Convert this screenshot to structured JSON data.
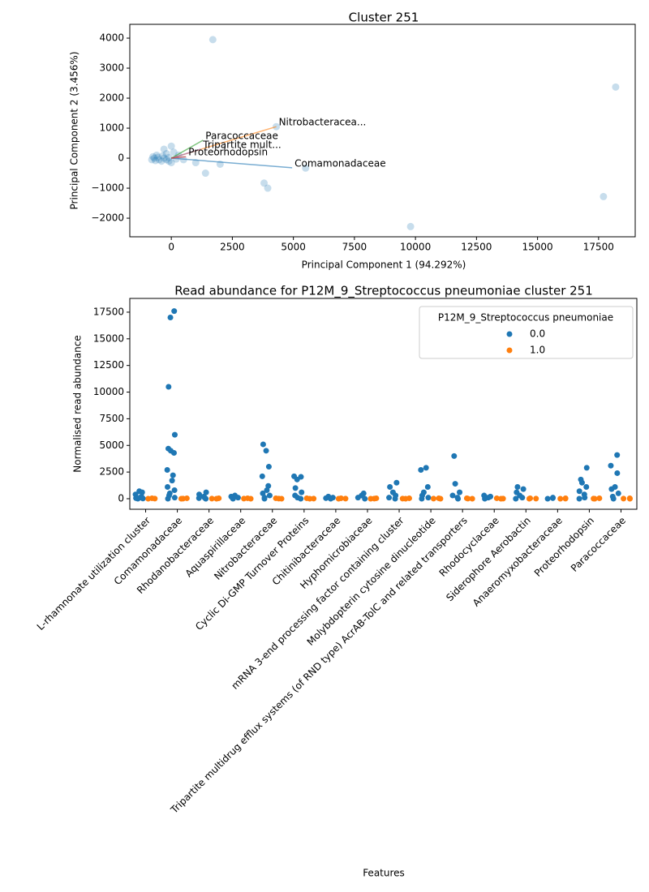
{
  "chart_data": [
    {
      "type": "scatter",
      "title": "Cluster 251",
      "x_label": "Principal Component 1 (94.292%)",
      "y_label": "Principal Component 2 (3.456%)",
      "color": "#1f77b4",
      "x": [
        1700,
        18200,
        17700,
        9800,
        3800,
        3950,
        5500,
        1400,
        2000,
        1000,
        500,
        -300,
        0,
        -600,
        -700,
        -800,
        -500,
        -400,
        -200,
        -100,
        0,
        -200,
        100,
        -300,
        4300,
        -650,
        -750,
        -550,
        -350,
        200,
        -100,
        300
      ],
      "values": [
        3950,
        2370,
        -1280,
        -2280,
        -830,
        -1000,
        -330,
        -500,
        -200,
        -150,
        -50,
        300,
        400,
        100,
        0,
        -50,
        -50,
        -100,
        -50,
        -100,
        -150,
        150,
        200,
        0,
        1050,
        -80,
        50,
        30,
        80,
        -30,
        20,
        100
      ],
      "arrows": [
        {
          "label": "Comamonadaceae",
          "color": "#1f77b4",
          "x": 4950,
          "y": -320
        },
        {
          "label": "Nitrobacteracea...",
          "color": "#ff7f0e",
          "x": 4300,
          "y": 1050
        },
        {
          "label": "Paracoccaceae",
          "color": "#2ca02c",
          "x": 1300,
          "y": 600
        },
        {
          "label": "Tripartite mult...",
          "color": "#9467bd",
          "x": 1200,
          "y": 300
        },
        {
          "label": "Proteorhodopsin",
          "color": "#d62728",
          "x": 600,
          "y": 50
        }
      ],
      "xlim": [
        -1700,
        19000
      ],
      "ylim": [
        -2620,
        4460
      ],
      "xticks": [
        0,
        2500,
        5000,
        7500,
        10000,
        12500,
        15000,
        17500
      ],
      "yticks": [
        {
          "value": -2000,
          "label": "−2000"
        },
        {
          "value": -1000,
          "label": "−1000"
        },
        0,
        1000,
        2000,
        3000,
        4000
      ]
    },
    {
      "type": "strip",
      "title": "Read abundance for P12M_9_Streptococcus pneumoniae cluster 251",
      "x_label": "Features",
      "y_label": "Normalised read abundance",
      "legend_title": "P12M_9_Streptococcus pneumoniae",
      "legend": "upper right",
      "categories": [
        "L-rhamnonate utilization cluster",
        "Comamonadaceae",
        "Rhodanobacteraceae",
        "Aquaspirillaceae",
        "Nitrobacteraceae",
        "Cyclic Di-GMP Turnover Proteins",
        "Chitinibacteraceae",
        "Hyphomicrobiaceae",
        "mRNA 3-end processing factor containing cluster",
        "Molybdopterin cytosine dinucleotide",
        "Tripartite multidrug efflux systems (of RND type) AcrAB-TolC and related transporters",
        "Rhodocyclaceae",
        "Siderophore Aerobactin",
        "Anaeromyxobacteraceae",
        "Proteorhodopsin",
        "Paracoccaceae"
      ],
      "series": [
        {
          "name": "0.0",
          "color": "#1f77b4",
          "values": [
            [
              700,
              600,
              400,
              200,
              100,
              50,
              20,
              0
            ],
            [
              17600,
              17000,
              10500,
              6000,
              4700,
              4500,
              4300,
              2700,
              2200,
              1700,
              1100,
              800,
              500,
              300,
              100,
              0
            ],
            [
              600,
              400,
              200,
              100,
              50,
              0
            ],
            [
              300,
              200,
              100,
              50,
              0
            ],
            [
              5100,
              4500,
              3000,
              2100,
              1200,
              800,
              500,
              300,
              100,
              0
            ],
            [
              2100,
              2050,
              1800,
              1000,
              600,
              300,
              100,
              0
            ],
            [
              200,
              100,
              50,
              0
            ],
            [
              500,
              300,
              100,
              0
            ],
            [
              1500,
              1100,
              600,
              300,
              100,
              0
            ],
            [
              2900,
              2700,
              1100,
              600,
              300,
              100,
              0
            ],
            [
              4000,
              1400,
              600,
              300,
              100,
              0
            ],
            [
              300,
              200,
              100,
              0
            ],
            [
              1100,
              900,
              600,
              300,
              100,
              0
            ],
            [
              100,
              50,
              0
            ],
            [
              2900,
              1800,
              1500,
              1100,
              700,
              400,
              100,
              0
            ],
            [
              4100,
              3100,
              2400,
              1100,
              900,
              500,
              200,
              0
            ]
          ]
        },
        {
          "name": "1.0",
          "color": "#ff7f0e",
          "values": [
            [
              40,
              10,
              0
            ],
            [
              40,
              10,
              0
            ],
            [
              40,
              10,
              0
            ],
            [
              40,
              10,
              0
            ],
            [
              40,
              10,
              0
            ],
            [
              40,
              10,
              0
            ],
            [
              40,
              10,
              0
            ],
            [
              40,
              10,
              0
            ],
            [
              40,
              10,
              0
            ],
            [
              40,
              10,
              0
            ],
            [
              40,
              10,
              0
            ],
            [
              40,
              10,
              0
            ],
            [
              40,
              10,
              0
            ],
            [
              40,
              10,
              0
            ],
            [
              40,
              10,
              0
            ],
            [
              40,
              10,
              0
            ]
          ]
        }
      ],
      "ylim": [
        -990,
        18790
      ],
      "yticks": [
        0,
        2500,
        5000,
        7500,
        10000,
        12500,
        15000,
        17500
      ]
    }
  ]
}
